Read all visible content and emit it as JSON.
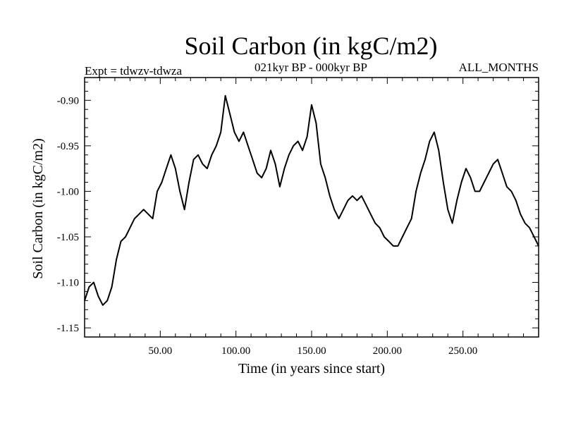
{
  "chart_data": {
    "type": "line",
    "title": "Soil Carbon (in kgC/m2)",
    "subtitle_left": "Expt = tdwzv-tdwza",
    "subtitle_center": "021kyr BP - 000kyr BP",
    "subtitle_right": "ALL_MONTHS",
    "xlabel": "Time (in years since start)",
    "ylabel": "Soil Carbon (in kgC/m2)",
    "xlim": [
      0,
      300
    ],
    "ylim": [
      -1.16,
      -0.875
    ],
    "x_ticks": [
      50,
      100,
      150,
      200,
      250
    ],
    "x_tick_labels": [
      "50.00",
      "100.00",
      "150.00",
      "200.00",
      "250.00"
    ],
    "y_ticks": [
      -0.9,
      -0.95,
      -1.0,
      -1.05,
      -1.1,
      -1.15
    ],
    "y_tick_labels": [
      "-0.90",
      "-0.95",
      "-1.00",
      "-1.05",
      "-1.10",
      "-1.15"
    ],
    "line_color": "#000000",
    "series": [
      {
        "x": [
          0,
          3,
          6,
          9,
          12,
          15,
          18,
          21,
          24,
          27,
          30,
          33,
          36,
          39,
          42,
          45,
          48,
          51,
          54,
          57,
          60,
          63,
          66,
          69,
          72,
          75,
          78,
          81,
          84,
          87,
          90,
          93,
          96,
          99,
          102,
          105,
          108,
          111,
          114,
          117,
          120,
          123,
          126,
          129,
          132,
          135,
          138,
          141,
          144,
          147,
          150,
          153,
          156,
          159,
          162,
          165,
          168,
          171,
          174,
          177,
          180,
          183,
          186,
          189,
          192,
          195,
          198,
          201,
          204,
          207,
          210,
          213,
          216,
          219,
          222,
          225,
          228,
          231,
          234,
          237,
          240,
          243,
          246,
          249,
          252,
          255,
          258,
          261,
          264,
          267,
          270,
          273,
          276,
          279,
          282,
          285,
          288,
          291,
          294,
          297,
          300
        ],
        "values": [
          -1.12,
          -1.105,
          -1.1,
          -1.115,
          -1.125,
          -1.12,
          -1.105,
          -1.075,
          -1.055,
          -1.05,
          -1.04,
          -1.03,
          -1.025,
          -1.02,
          -1.025,
          -1.03,
          -1.0,
          -0.99,
          -0.975,
          -0.96,
          -0.975,
          -1.0,
          -1.02,
          -0.99,
          -0.965,
          -0.96,
          -0.97,
          -0.975,
          -0.96,
          -0.95,
          -0.935,
          -0.895,
          -0.915,
          -0.935,
          -0.945,
          -0.935,
          -0.95,
          -0.965,
          -0.98,
          -0.985,
          -0.975,
          -0.955,
          -0.97,
          -0.995,
          -0.975,
          -0.96,
          -0.95,
          -0.945,
          -0.955,
          -0.94,
          -0.905,
          -0.925,
          -0.97,
          -0.985,
          -1.005,
          -1.02,
          -1.03,
          -1.02,
          -1.01,
          -1.005,
          -1.01,
          -1.005,
          -1.015,
          -1.025,
          -1.035,
          -1.04,
          -1.05,
          -1.055,
          -1.06,
          -1.06,
          -1.05,
          -1.04,
          -1.03,
          -1.0,
          -0.98,
          -0.965,
          -0.945,
          -0.935,
          -0.955,
          -0.99,
          -1.02,
          -1.035,
          -1.01,
          -0.99,
          -0.975,
          -0.985,
          -1.0,
          -1.0,
          -0.99,
          -0.98,
          -0.97,
          -0.965,
          -0.98,
          -0.995,
          -1.0,
          -1.01,
          -1.025,
          -1.035,
          -1.04,
          -1.05,
          -1.06
        ]
      }
    ]
  }
}
